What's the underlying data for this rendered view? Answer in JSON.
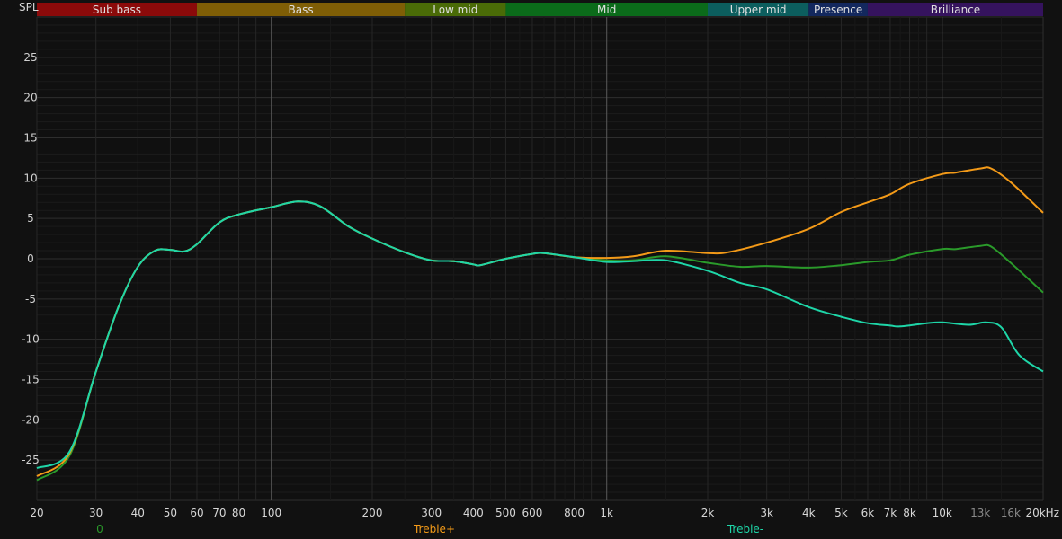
{
  "chart_data": {
    "type": "line",
    "ylabel": "SPL",
    "x_scale": "log",
    "xlim": [
      20,
      20000
    ],
    "ylim": [
      -30,
      30
    ],
    "grid": true,
    "y_ticks": [
      25,
      20,
      15,
      10,
      5,
      0,
      -5,
      -10,
      -15,
      -20,
      -25
    ],
    "x_ticks": [
      {
        "value": 20,
        "label": "20"
      },
      {
        "value": 30,
        "label": "30"
      },
      {
        "value": 40,
        "label": "40"
      },
      {
        "value": 50,
        "label": "50"
      },
      {
        "value": 60,
        "label": "60"
      },
      {
        "value": 70,
        "label": "70"
      },
      {
        "value": 80,
        "label": "80"
      },
      {
        "value": 100,
        "label": "100"
      },
      {
        "value": 200,
        "label": "200"
      },
      {
        "value": 300,
        "label": "300"
      },
      {
        "value": 400,
        "label": "400"
      },
      {
        "value": 500,
        "label": "500"
      },
      {
        "value": 600,
        "label": "600"
      },
      {
        "value": 800,
        "label": "800"
      },
      {
        "value": 1000,
        "label": "1k"
      },
      {
        "value": 2000,
        "label": "2k"
      },
      {
        "value": 3000,
        "label": "3k"
      },
      {
        "value": 4000,
        "label": "4k"
      },
      {
        "value": 5000,
        "label": "5k"
      },
      {
        "value": 6000,
        "label": "6k"
      },
      {
        "value": 7000,
        "label": "7k"
      },
      {
        "value": 8000,
        "label": "8k"
      },
      {
        "value": 10000,
        "label": "10k"
      },
      {
        "value": 13000,
        "label": "13k",
        "dim": true
      },
      {
        "value": 16000,
        "label": "16k",
        "dim": true
      },
      {
        "value": 20000,
        "label": "20kHz"
      }
    ],
    "bands": [
      {
        "label": "Sub bass",
        "from": 20,
        "to": 60,
        "color": "#8b0a0a"
      },
      {
        "label": "Bass",
        "from": 60,
        "to": 250,
        "color": "#7f5e06"
      },
      {
        "label": "Low mid",
        "from": 250,
        "to": 500,
        "color": "#4a6b07"
      },
      {
        "label": "Mid",
        "from": 500,
        "to": 2000,
        "color": "#0b6b1a"
      },
      {
        "label": "Upper mid",
        "from": 2000,
        "to": 4000,
        "color": "#0c5e5e"
      },
      {
        "label": "Presence",
        "from": 4000,
        "to": 6000,
        "color": "#13285e"
      },
      {
        "label": "Brilliance",
        "from": 6000,
        "to": 20000,
        "color": "#35135e"
      }
    ],
    "legend_placement": "bottom",
    "series": [
      {
        "name": "0",
        "color": "#2a9a2a",
        "x": [
          20,
          25,
          30,
          35,
          40,
          45,
          50,
          55,
          60,
          70,
          80,
          100,
          120,
          140,
          170,
          200,
          250,
          300,
          350,
          400,
          420,
          500,
          600,
          650,
          800,
          1000,
          1200,
          1500,
          2000,
          2500,
          3000,
          4000,
          5000,
          6000,
          7000,
          8000,
          10000,
          11000,
          13000,
          14000,
          16000,
          20000
        ],
        "y": [
          -27.5,
          -24.5,
          -14,
          -6,
          -1,
          1,
          1.1,
          0.9,
          1.8,
          4.5,
          5.5,
          6.4,
          7.1,
          6.5,
          4,
          2.5,
          0.8,
          -0.2,
          -0.3,
          -0.7,
          -0.8,
          0,
          0.6,
          0.7,
          0.2,
          -0.2,
          -0.2,
          0.3,
          -0.5,
          -1,
          -0.9,
          -1.1,
          -0.8,
          -0.4,
          -0.2,
          0.5,
          1.2,
          1.2,
          1.6,
          1.5,
          -0.5,
          -4.2
        ]
      },
      {
        "name": "Treble+",
        "color": "#f39a18",
        "x": [
          20,
          25,
          30,
          35,
          40,
          45,
          50,
          55,
          60,
          70,
          80,
          100,
          120,
          140,
          170,
          200,
          250,
          300,
          350,
          400,
          420,
          500,
          600,
          650,
          800,
          1000,
          1200,
          1500,
          2000,
          2300,
          3000,
          4000,
          5000,
          6000,
          7000,
          8000,
          10000,
          11000,
          13000,
          14000,
          16000,
          20000
        ],
        "y": [
          -27,
          -24.2,
          -14,
          -6,
          -1,
          1,
          1.1,
          0.9,
          1.8,
          4.5,
          5.5,
          6.4,
          7.1,
          6.5,
          4,
          2.5,
          0.8,
          -0.2,
          -0.3,
          -0.7,
          -0.8,
          0,
          0.6,
          0.7,
          0.2,
          0.1,
          0.3,
          1.0,
          0.7,
          0.8,
          2.0,
          3.7,
          5.8,
          7.0,
          8.0,
          9.3,
          10.5,
          10.7,
          11.2,
          11.2,
          9.5,
          5.7
        ]
      },
      {
        "name": "Treble-",
        "color": "#1ed6a8",
        "x": [
          20,
          25,
          30,
          35,
          40,
          45,
          50,
          55,
          60,
          70,
          80,
          100,
          120,
          140,
          170,
          200,
          250,
          300,
          350,
          400,
          420,
          500,
          600,
          650,
          800,
          1000,
          1200,
          1500,
          2000,
          2500,
          3000,
          4000,
          5000,
          6000,
          7000,
          7500,
          9000,
          10000,
          12000,
          13500,
          15000,
          17000,
          20000
        ],
        "y": [
          -26,
          -24,
          -14,
          -6,
          -1,
          1,
          1.1,
          0.9,
          1.8,
          4.5,
          5.5,
          6.4,
          7.1,
          6.5,
          4,
          2.5,
          0.8,
          -0.2,
          -0.3,
          -0.7,
          -0.8,
          0,
          0.6,
          0.7,
          0.2,
          -0.4,
          -0.3,
          -0.2,
          -1.5,
          -3,
          -3.8,
          -6,
          -7.2,
          -8,
          -8.3,
          -8.4,
          -8,
          -7.9,
          -8.2,
          -7.9,
          -8.5,
          -12,
          -14
        ]
      }
    ]
  }
}
